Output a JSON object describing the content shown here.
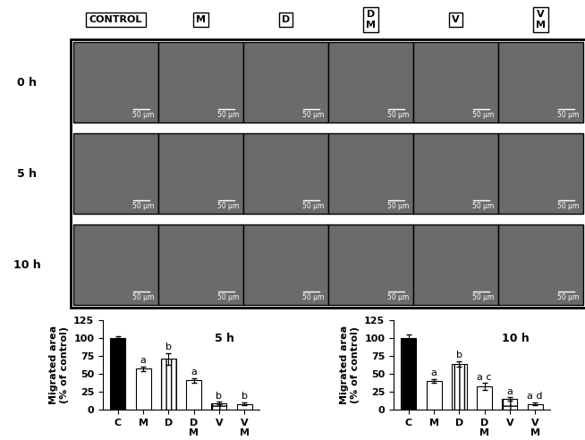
{
  "image_panel": {
    "columns": [
      "CONTROL",
      "M",
      "D",
      "D\nM",
      "V",
      "V\nM"
    ],
    "rows": [
      "0 h",
      "5 h",
      "10 h"
    ],
    "scale_bar": "50 µm"
  },
  "chart_data": [
    {
      "type": "bar",
      "title": "5 h",
      "y_label": "Migrated area\n(% of control)",
      "categories": [
        "C",
        "M",
        "D",
        "D\nM",
        "V",
        "V\nM"
      ],
      "values": [
        100,
        57,
        71,
        41,
        9,
        8
      ],
      "errors": [
        3,
        3,
        8,
        3,
        2,
        2
      ],
      "annotations": [
        null,
        "a",
        "b",
        "a",
        "b",
        "b"
      ],
      "colors": [
        "#000000",
        "#ffffff",
        "#ffffff",
        "#ffffff",
        "#ffffff",
        "#ffffff"
      ],
      "ylim": [
        0,
        125
      ],
      "yticks": [
        0,
        25,
        50,
        75,
        100,
        125
      ]
    },
    {
      "type": "bar",
      "title": "10 h",
      "y_label": "Migrated area\n(% of control)",
      "categories": [
        "C",
        "M",
        "D",
        "D\nM",
        "V",
        "V\nM"
      ],
      "values": [
        100,
        40,
        64,
        32,
        15,
        8
      ],
      "errors": [
        5,
        3,
        4,
        5,
        2,
        2
      ],
      "annotations": [
        null,
        "a",
        "b",
        "a c",
        "a",
        "a d"
      ],
      "colors": [
        "#000000",
        "#ffffff",
        "#ffffff",
        "#ffffff",
        "#ffffff",
        "#ffffff"
      ],
      "ylim": [
        0,
        125
      ],
      "yticks": [
        0,
        25,
        50,
        75,
        100,
        125
      ]
    }
  ]
}
